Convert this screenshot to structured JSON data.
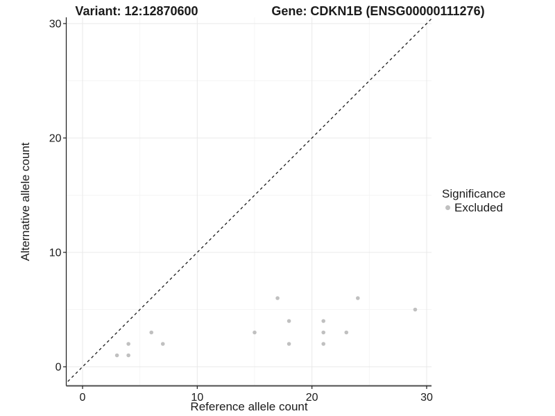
{
  "header": {
    "title_left": "Variant: 12:12870600",
    "title_right": "Gene: CDKN1B (ENSG00000111276)"
  },
  "chart_data": {
    "type": "scatter",
    "title": "Variant: 12:12870600 / Gene: CDKN1B (ENSG00000111276)",
    "xlabel": "Reference allele count",
    "ylabel": "Alternative allele count",
    "xlim": [
      -1.4,
      30.4
    ],
    "ylim": [
      -1.7,
      30.5
    ],
    "x_ticks": [
      0,
      10,
      20,
      30
    ],
    "y_ticks": [
      0,
      10,
      20,
      30
    ],
    "x_minor": [
      5,
      15,
      25
    ],
    "y_minor": [
      5,
      15,
      25
    ],
    "grid": true,
    "identity_line": {
      "slope": 1,
      "intercept": 0,
      "style": "dashed"
    },
    "series": [
      {
        "name": "Excluded",
        "points": [
          [
            3,
            1
          ],
          [
            4,
            1
          ],
          [
            4,
            2
          ],
          [
            6,
            3
          ],
          [
            7,
            2
          ],
          [
            15,
            3
          ],
          [
            17,
            6
          ],
          [
            18,
            2
          ],
          [
            18,
            4
          ],
          [
            21,
            2
          ],
          [
            21,
            3
          ],
          [
            21,
            4
          ],
          [
            23,
            3
          ],
          [
            24,
            6
          ],
          [
            29,
            5
          ]
        ]
      }
    ],
    "legend": {
      "title": "Significance",
      "position": "right",
      "entries": [
        {
          "label": "Excluded",
          "color": "#c0c0c0"
        }
      ]
    }
  },
  "colors": {
    "point": "#c0c0c0",
    "grid_major": "#e8e8e8",
    "grid_minor": "#f4f4f4",
    "axis_line_y": "#1a1a1a",
    "axis_line_x": "#4d4d4d",
    "tick": "#1a1a1a",
    "dashed_line": "#1a1a1a",
    "text": "#1a1a1a",
    "background": "#ffffff"
  }
}
